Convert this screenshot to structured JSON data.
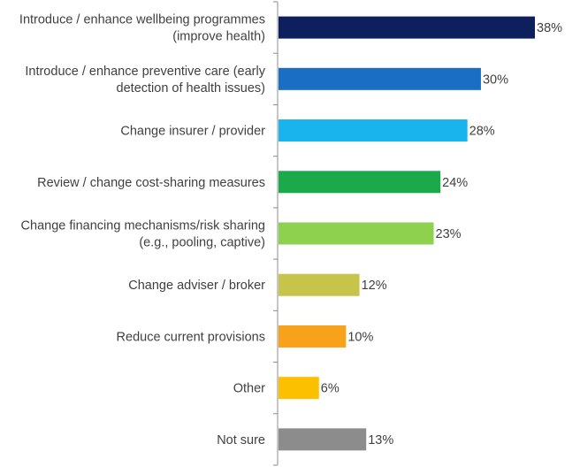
{
  "chart_data": {
    "type": "bar",
    "orientation": "horizontal",
    "categories": [
      [
        "Introduce / enhance wellbeing programmes",
        "(improve health)"
      ],
      [
        "Introduce / enhance preventive care (early",
        "detection of health issues)"
      ],
      [
        "Change insurer / provider"
      ],
      [
        "Review / change cost-sharing measures"
      ],
      [
        "Change financing mechanisms/risk sharing",
        "(e.g., pooling, captive)"
      ],
      [
        "Change adviser / broker"
      ],
      [
        "Reduce current provisions"
      ],
      [
        "Other"
      ],
      [
        "Not sure"
      ]
    ],
    "values": [
      38,
      30,
      28,
      24,
      23,
      12,
      10,
      6,
      13
    ],
    "value_labels": [
      "38%",
      "30%",
      "28%",
      "24%",
      "23%",
      "12%",
      "10%",
      "6%",
      "13%"
    ],
    "colors": [
      "#0d1f5c",
      "#1a6fc4",
      "#19b4ee",
      "#1aaa4a",
      "#8ed14f",
      "#c6c44a",
      "#f7a21a",
      "#fcc000",
      "#8c8c8c"
    ],
    "title": "",
    "xlabel": "",
    "ylabel": "",
    "xlim": [
      0,
      38
    ],
    "grid": false,
    "legend": "none"
  }
}
